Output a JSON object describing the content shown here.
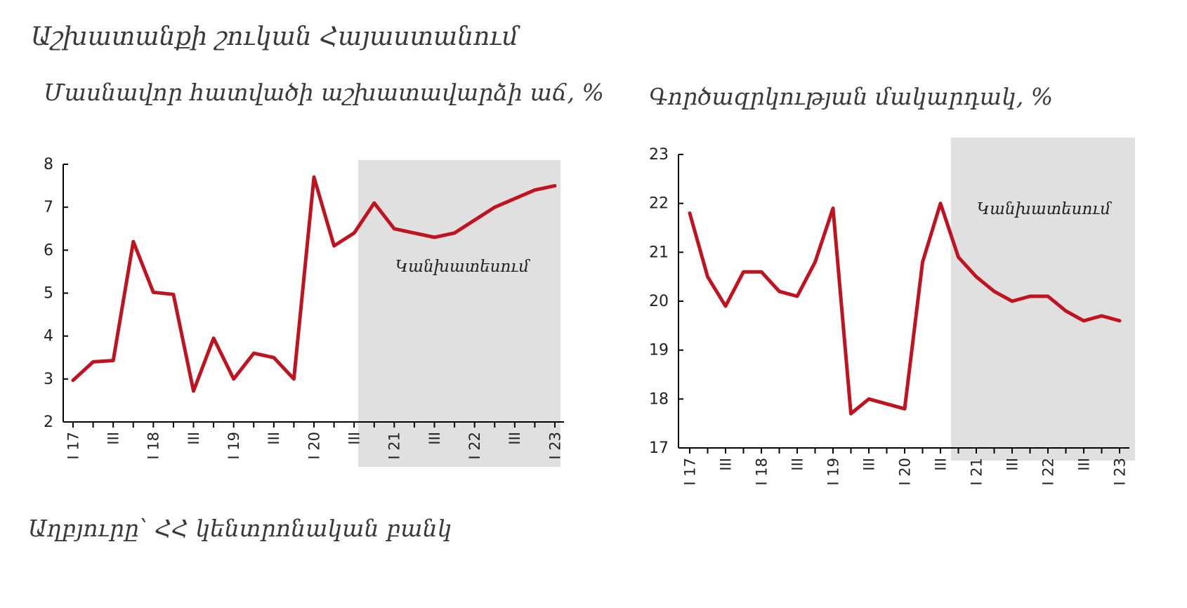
{
  "page": {
    "title": "Աշխատանքի շուկան Հայաստանում",
    "source": "Աղբյուրը՝  ՀՀ կենտրոնական բանկ"
  },
  "colors": {
    "line": "#C1121F",
    "forecast": "#E0E0E0",
    "axis": "#000000"
  },
  "chart_data": [
    {
      "type": "line",
      "title": "Մասնավոր հատվածի աշխատավարձի աճ, %",
      "ylim": [
        2,
        8
      ],
      "yticks": [
        2,
        3,
        4,
        5,
        6,
        7,
        8
      ],
      "xtick_labels": [
        "I 17",
        "III",
        "I 18",
        "III",
        "I 19",
        "III",
        "I 20",
        "III",
        "I 21",
        "III",
        "I 22",
        "III",
        "I 23"
      ],
      "forecast_label": "Կանխատեսում",
      "forecast_start_index": 15,
      "series": [
        {
          "values": [
            2.97,
            3.4,
            3.43,
            6.2,
            5.02,
            4.97,
            2.72,
            3.95,
            3.0,
            3.6,
            3.5,
            3.0,
            7.7,
            6.1,
            6.4,
            7.1,
            6.5,
            6.4,
            6.3,
            6.4,
            6.7,
            7.0,
            7.2,
            7.4,
            7.5
          ]
        }
      ]
    },
    {
      "type": "line",
      "title": "Գործազրկության մակարդակ, %",
      "ylim": [
        17,
        23
      ],
      "yticks": [
        17,
        18,
        19,
        20,
        21,
        22,
        23
      ],
      "xtick_labels": [
        "I 17",
        "III",
        "I 18",
        "III",
        "I 19",
        "III",
        "I 20",
        "III",
        "I 21",
        "III",
        "I 22",
        "III",
        "I 23"
      ],
      "forecast_label": "Կանխատեսում",
      "forecast_start_index": 15,
      "series": [
        {
          "values": [
            21.8,
            20.5,
            19.9,
            20.6,
            20.6,
            20.2,
            20.1,
            20.8,
            21.9,
            17.7,
            18.0,
            17.9,
            17.8,
            20.8,
            22.0,
            20.9,
            20.5,
            20.2,
            20.0,
            20.1,
            20.1,
            19.8,
            19.6,
            19.7,
            19.6
          ]
        }
      ]
    }
  ]
}
